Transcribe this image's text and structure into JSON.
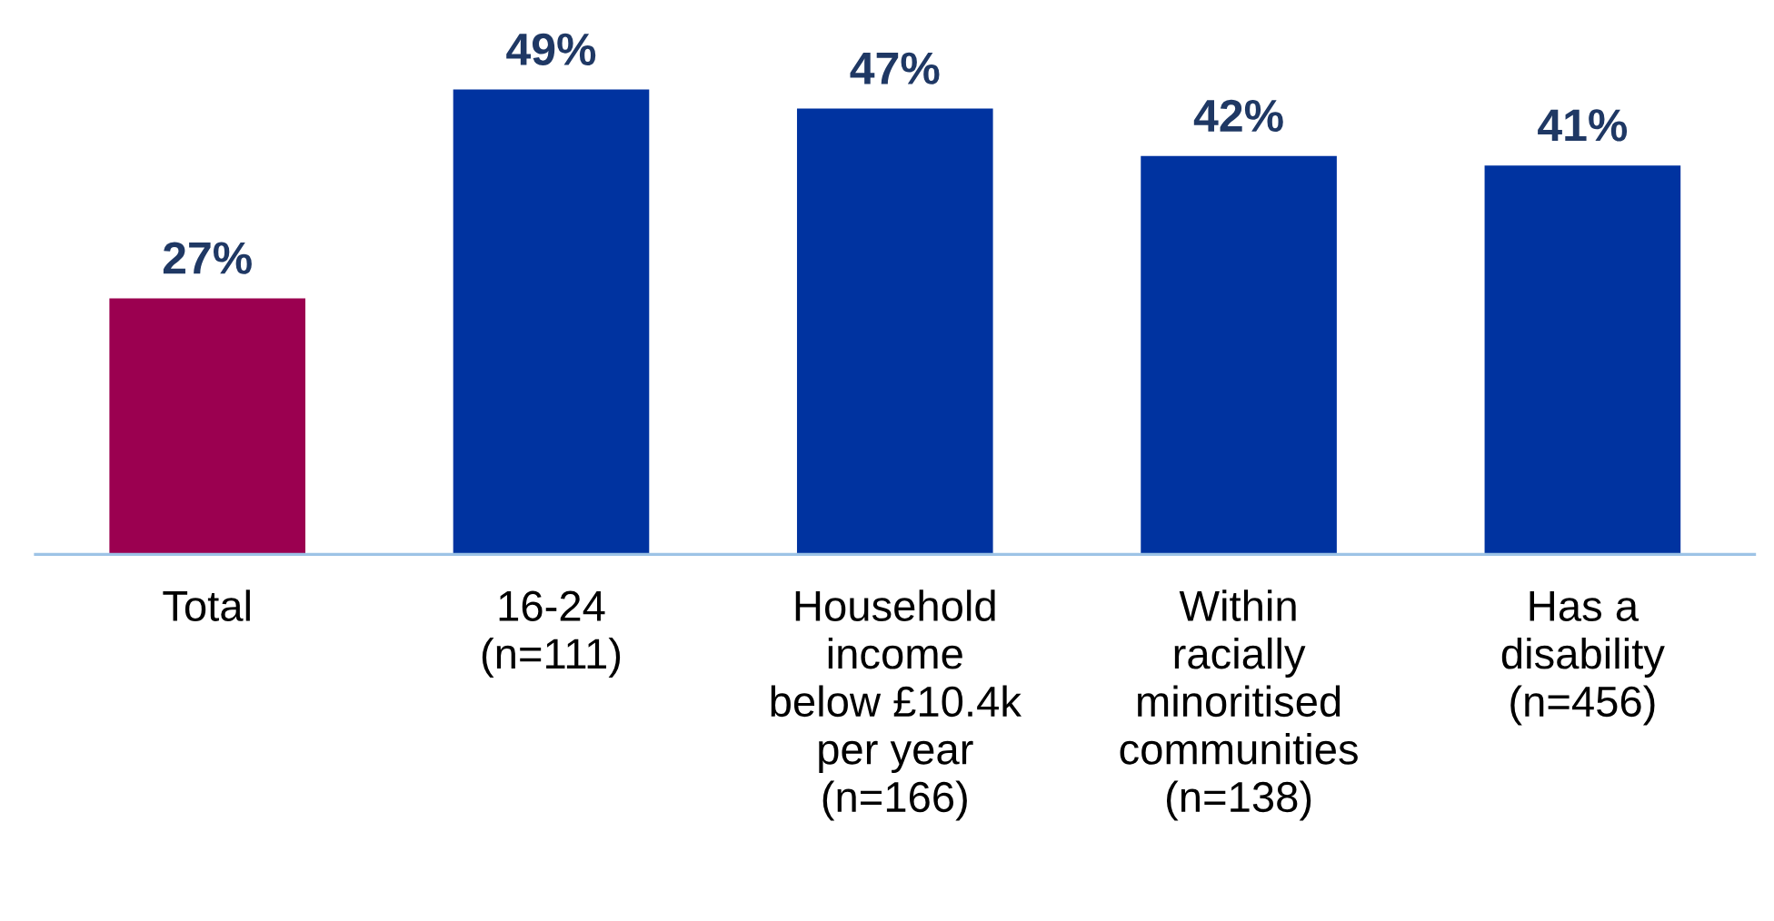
{
  "chart_data": {
    "type": "bar",
    "categories": [
      "Total",
      "16-24\n(n=111)",
      "Household\nincome\nbelow £10.4k\nper year\n(n=166)",
      "Within\nracially\nminoritised\ncommunities\n(n=138)",
      "Has a\ndisability\n(n=456)"
    ],
    "values": [
      27,
      49,
      47,
      42,
      41
    ],
    "colors": [
      "#9b0050",
      "#0033a0",
      "#0033a0",
      "#0033a0",
      "#0033a0"
    ],
    "value_labels": [
      "27%",
      "49%",
      "47%",
      "42%",
      "41%"
    ],
    "tick_labels": "x",
    "grid": false,
    "legend": false
  }
}
